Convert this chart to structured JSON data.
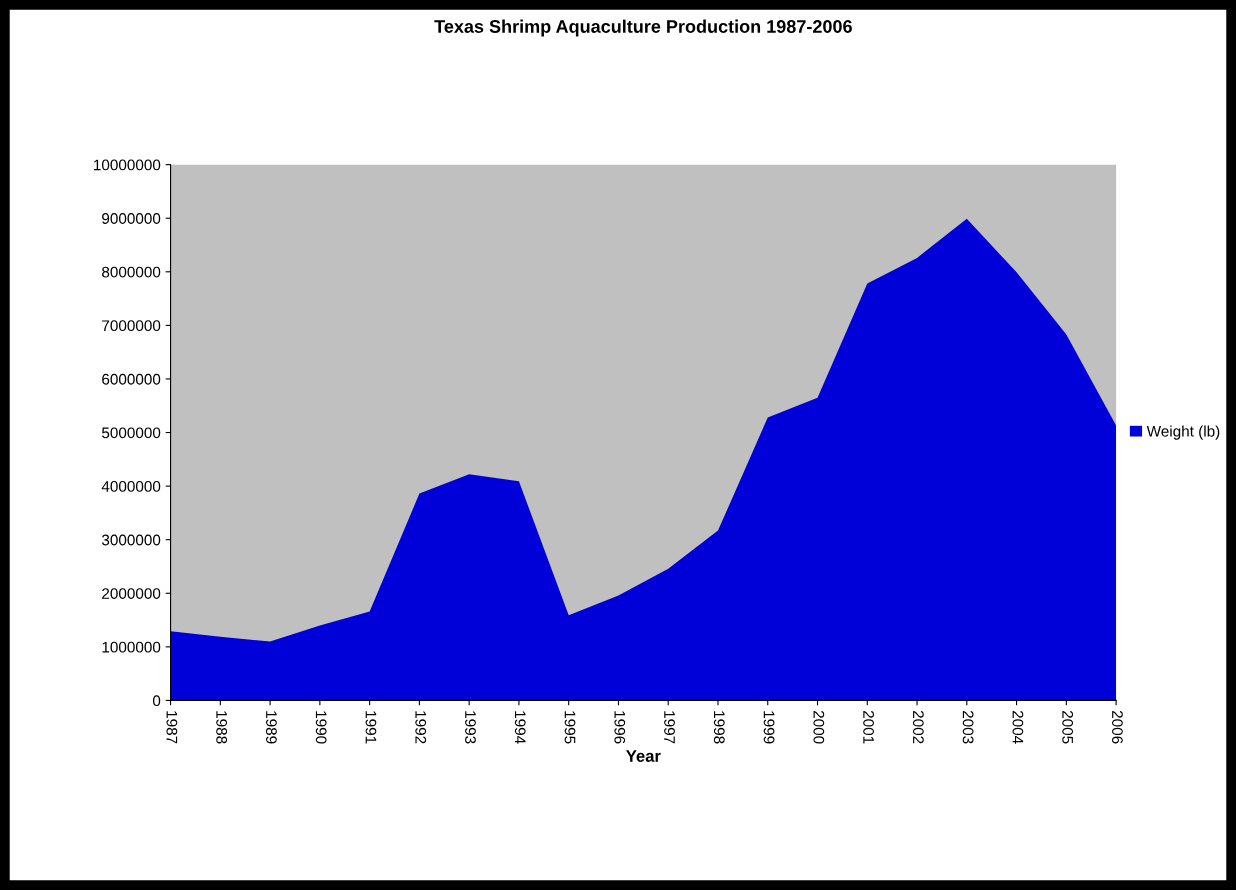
{
  "chart_data": {
    "type": "area",
    "title": "Texas Shrimp Aquaculture Production 1987-2006",
    "xlabel": "Year",
    "categories": [
      "1987",
      "1988",
      "1989",
      "1990",
      "1991",
      "1992",
      "1993",
      "1994",
      "1995",
      "1996",
      "1997",
      "1998",
      "1999",
      "2000",
      "2001",
      "2002",
      "2003",
      "2004",
      "2005",
      "2006"
    ],
    "series": [
      {
        "name": "Weight (lb)",
        "color": "#0000d8",
        "values": [
          1290000,
          1190000,
          1100000,
          1400000,
          1660000,
          3860000,
          4220000,
          4090000,
          1590000,
          1960000,
          2460000,
          3170000,
          5280000,
          5650000,
          7780000,
          8260000,
          8990000,
          7990000,
          6830000,
          5130000
        ]
      }
    ],
    "ylim": [
      0,
      10000000
    ],
    "yticks": [
      0,
      1000000,
      2000000,
      3000000,
      4000000,
      5000000,
      6000000,
      7000000,
      8000000,
      9000000,
      10000000
    ],
    "grid": false,
    "legend": "right"
  }
}
